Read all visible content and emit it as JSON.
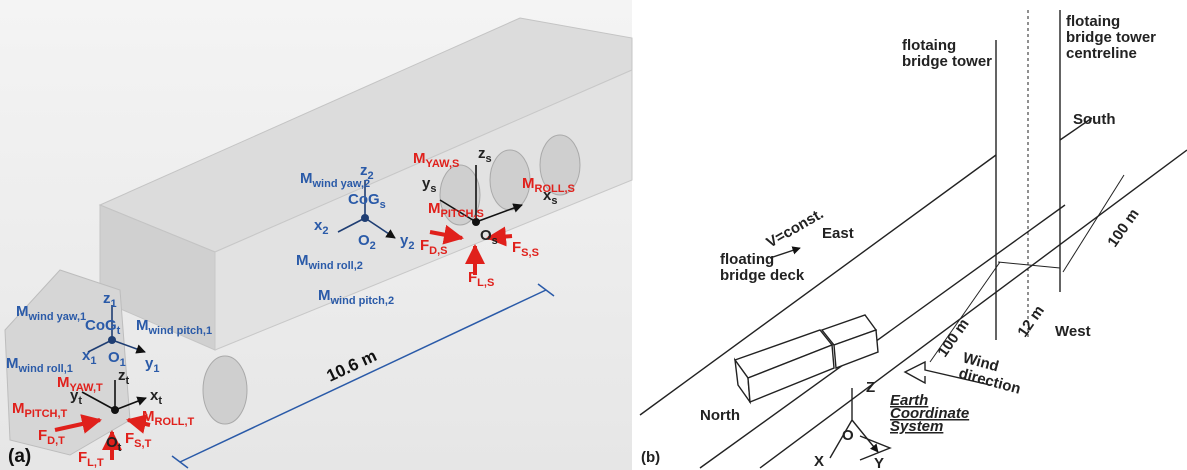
{
  "panel_a": {
    "label": "(a)",
    "dimension": "10.6 m",
    "labels": [
      {
        "main": "M",
        "sub": "wind yaw,2",
        "color": "#2a5aa8"
      },
      {
        "main": "z",
        "sub": "2",
        "color": "#2a5aa8"
      },
      {
        "main": "CoG",
        "sub": "s",
        "color": "#2a5aa8"
      },
      {
        "main": "x",
        "sub": "2",
        "color": "#2a5aa8"
      },
      {
        "main": "O",
        "sub": "2",
        "color": "#2a5aa8"
      },
      {
        "main": "y",
        "sub": "2",
        "color": "#2a5aa8"
      },
      {
        "main": "M",
        "sub": "wind roll,2",
        "color": "#2a5aa8"
      },
      {
        "main": "M",
        "sub": "wind pitch,2",
        "color": "#2a5aa8"
      },
      {
        "main": "M",
        "sub": "wind yaw,1",
        "color": "#2a5aa8"
      },
      {
        "main": "z",
        "sub": "1",
        "color": "#2a5aa8"
      },
      {
        "main": "CoG",
        "sub": "t",
        "color": "#2a5aa8"
      },
      {
        "main": "M",
        "sub": "wind pitch,1",
        "color": "#2a5aa8"
      },
      {
        "main": "M",
        "sub": "wind roll,1",
        "color": "#2a5aa8"
      },
      {
        "main": "x",
        "sub": "1",
        "color": "#2a5aa8"
      },
      {
        "main": "O",
        "sub": "1",
        "color": "#2a5aa8"
      },
      {
        "main": "y",
        "sub": "1",
        "color": "#2a5aa8"
      },
      {
        "main": "M",
        "sub": "YAW,S",
        "color": "#e0201b"
      },
      {
        "main": "z",
        "sub": "s",
        "color": "#222222"
      },
      {
        "main": "y",
        "sub": "s",
        "color": "#222222"
      },
      {
        "main": "M",
        "sub": "ROLL,S",
        "color": "#e0201b"
      },
      {
        "main": "x",
        "sub": "s",
        "color": "#222222"
      },
      {
        "main": "M",
        "sub": "PITCH,S",
        "color": "#e0201b"
      },
      {
        "main": "O",
        "sub": "s",
        "color": "#222222"
      },
      {
        "main": "F",
        "sub": "D,S",
        "color": "#e0201b"
      },
      {
        "main": "F",
        "sub": "S,S",
        "color": "#e0201b"
      },
      {
        "main": "F",
        "sub": "L,S",
        "color": "#e0201b"
      },
      {
        "main": "M",
        "sub": "YAW,T",
        "color": "#e0201b"
      },
      {
        "main": "z",
        "sub": "t",
        "color": "#222222"
      },
      {
        "main": "y",
        "sub": "t",
        "color": "#222222"
      },
      {
        "main": "x",
        "sub": "t",
        "color": "#222222"
      },
      {
        "main": "M",
        "sub": "PITCH,T",
        "color": "#e0201b"
      },
      {
        "main": "M",
        "sub": "ROLL,T",
        "color": "#e0201b"
      },
      {
        "main": "O",
        "sub": "t",
        "color": "#222222"
      },
      {
        "main": "F",
        "sub": "D,T",
        "color": "#e0201b"
      },
      {
        "main": "F",
        "sub": "S,T",
        "color": "#e0201b"
      },
      {
        "main": "F",
        "sub": "L,T",
        "color": "#e0201b"
      }
    ]
  },
  "panel_b": {
    "label": "(b)",
    "tower": [
      "flotaing",
      "bridge tower"
    ],
    "centreline": [
      "flotaing",
      "bridge tower",
      "centreline"
    ],
    "south": "South",
    "east": "East",
    "west": "West",
    "north": "North",
    "deck": [
      "floating",
      "bridge deck"
    ],
    "speed": "V=const.",
    "span_east": "100 m",
    "span_west": "100 m",
    "width": "12 m",
    "wind": [
      "Wind",
      "direction"
    ],
    "axis_z": "Z",
    "axis_o": "O",
    "axis_x": "X",
    "axis_y": "Y",
    "coordinate_system": [
      "Earth",
      "Coordinate",
      "System"
    ]
  }
}
